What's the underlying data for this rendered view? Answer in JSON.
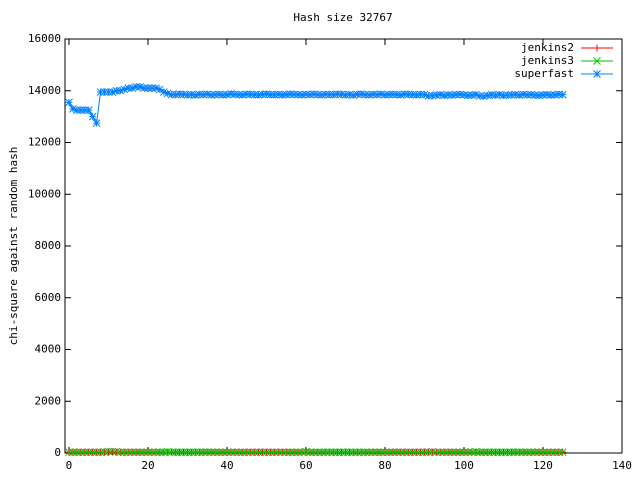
{
  "chart_data": {
    "type": "line",
    "title": "Hash size 32767",
    "y_label": "chi-square against random hash",
    "xlim": [
      -1,
      140
    ],
    "xticks": [
      0,
      20,
      40,
      60,
      80,
      100,
      120,
      140
    ],
    "ylim": [
      0,
      16000
    ],
    "yticks": [
      0,
      2000,
      4000,
      6000,
      8000,
      10000,
      12000,
      14000,
      16000
    ],
    "grid": false,
    "legend": "top-right",
    "x": [
      0,
      1,
      2,
      3,
      4,
      5,
      6,
      7,
      8,
      9,
      10,
      11,
      12,
      13,
      14,
      15,
      16,
      17,
      18,
      19,
      20,
      21,
      22,
      23,
      24,
      25,
      26,
      27,
      28,
      29,
      30,
      31,
      32,
      33,
      34,
      35,
      36,
      37,
      38,
      39,
      40,
      41,
      42,
      43,
      44,
      45,
      46,
      47,
      48,
      49,
      50,
      51,
      52,
      53,
      54,
      55,
      56,
      57,
      58,
      59,
      60,
      61,
      62,
      63,
      64,
      65,
      66,
      67,
      68,
      69,
      70,
      71,
      72,
      73,
      74,
      75,
      76,
      77,
      78,
      79,
      80,
      81,
      82,
      83,
      84,
      85,
      86,
      87,
      88,
      89,
      90,
      91,
      92,
      93,
      94,
      95,
      96,
      97,
      98,
      99,
      100,
      101,
      102,
      103,
      104,
      105,
      106,
      107,
      108,
      109,
      110,
      111,
      112,
      113,
      114,
      115,
      116,
      117,
      118,
      119,
      120,
      121,
      122,
      123,
      124,
      125
    ],
    "series": [
      {
        "name": "jenkins2",
        "color": "#ff0000",
        "marker": "plus",
        "values": [
          30,
          28,
          32,
          31,
          29,
          30,
          33,
          27,
          31,
          30,
          29,
          32,
          30,
          28,
          31,
          30,
          29,
          33,
          30,
          31,
          28,
          30,
          32,
          29,
          31,
          30,
          28,
          31,
          30,
          32,
          29,
          30,
          31,
          28,
          30,
          32,
          31,
          29,
          30,
          30,
          28,
          31,
          32,
          30,
          29,
          31,
          30,
          28,
          33,
          30,
          29,
          31,
          30,
          32,
          28,
          30,
          31,
          29,
          30,
          32,
          30,
          28,
          31,
          30,
          29,
          33,
          30,
          31,
          28,
          30,
          32,
          29,
          31,
          30,
          28,
          31,
          30,
          32,
          29,
          30,
          31,
          28,
          30,
          32,
          31,
          29,
          30,
          30,
          28,
          31,
          32,
          30,
          29,
          31,
          30,
          28,
          33,
          30,
          29,
          31,
          30,
          32,
          28,
          30,
          31,
          29,
          30,
          32,
          30,
          28,
          31,
          30,
          29,
          33,
          30,
          31,
          28,
          30,
          32,
          29,
          31,
          30,
          28,
          31,
          30,
          32
        ]
      },
      {
        "name": "jenkins3",
        "color": "#00c000",
        "marker": "cross",
        "values": [
          31,
          29,
          30,
          32,
          28,
          30,
          31,
          29,
          30,
          45,
          60,
          58,
          55,
          32,
          30,
          29,
          31,
          30,
          28,
          32,
          30,
          31,
          29,
          30,
          33,
          55,
          31,
          30,
          29,
          32,
          30,
          28,
          31,
          30,
          29,
          32,
          30,
          31,
          28,
          30,
          32,
          29,
          31,
          30,
          28,
          31,
          30,
          32,
          29,
          30,
          31,
          28,
          30,
          32,
          31,
          29,
          30,
          30,
          28,
          31,
          52,
          30,
          29,
          31,
          30,
          28,
          33,
          30,
          29,
          31,
          30,
          32,
          28,
          30,
          31,
          29,
          30,
          32,
          30,
          28,
          31,
          30,
          29,
          33,
          30,
          31,
          28,
          30,
          32,
          29,
          31,
          30,
          50,
          31,
          30,
          32,
          29,
          30,
          31,
          28,
          30,
          32,
          31,
          55,
          30,
          30,
          28,
          31,
          32,
          30,
          29,
          31,
          30,
          28,
          33,
          30,
          29,
          31,
          30,
          32,
          28,
          30,
          31,
          29,
          30,
          32
        ]
      },
      {
        "name": "superfast",
        "color": "#0080ff",
        "marker": "star",
        "values": [
          13550,
          13300,
          13250,
          13250,
          13250,
          13250,
          13000,
          12750,
          13950,
          13950,
          13950,
          13950,
          14000,
          14000,
          14050,
          14100,
          14100,
          14150,
          14150,
          14100,
          14100,
          14100,
          14100,
          14050,
          13950,
          13900,
          13850,
          13850,
          13870,
          13860,
          13840,
          13850,
          13830,
          13860,
          13850,
          13870,
          13840,
          13850,
          13860,
          13840,
          13850,
          13880,
          13860,
          13850,
          13840,
          13870,
          13860,
          13850,
          13840,
          13860,
          13870,
          13850,
          13850,
          13860,
          13840,
          13850,
          13870,
          13860,
          13850,
          13840,
          13860,
          13850,
          13870,
          13850,
          13840,
          13860,
          13850,
          13850,
          13870,
          13860,
          13840,
          13850,
          13830,
          13860,
          13870,
          13850,
          13840,
          13860,
          13850,
          13870,
          13840,
          13850,
          13860,
          13850,
          13840,
          13870,
          13860,
          13850,
          13840,
          13860,
          13850,
          13800,
          13810,
          13830,
          13850,
          13820,
          13840,
          13830,
          13850,
          13860,
          13840,
          13820,
          13830,
          13850,
          13800,
          13790,
          13820,
          13840,
          13830,
          13850,
          13820,
          13830,
          13840,
          13850,
          13830,
          13860,
          13840,
          13850,
          13830,
          13820,
          13840,
          13850,
          13830,
          13840,
          13860,
          13850
        ]
      }
    ]
  }
}
